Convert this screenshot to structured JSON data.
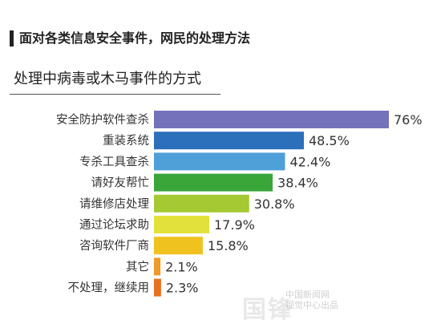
{
  "header": {
    "title": "面对各类信息安全事件，网民的处理方法",
    "subtitle": "处理中病毒或木马事件的方式"
  },
  "chart_data": {
    "type": "bar",
    "orientation": "horizontal",
    "categories": [
      "安全防护软件查杀",
      "重装系统",
      "专杀工具查杀",
      "请好友帮忙",
      "请维修店处理",
      "通过论坛求助",
      "咨询软件厂商",
      "其它",
      "不处理，继续用"
    ],
    "values": [
      76,
      48.5,
      42.4,
      38.4,
      30.8,
      17.9,
      15.8,
      2.1,
      2.3
    ],
    "value_labels": [
      "76%",
      "48.5%",
      "42.4%",
      "38.4%",
      "30.8%",
      "17.9%",
      "15.8%",
      "2.1%",
      "2.3%"
    ],
    "colors": [
      "#7472bb",
      "#2c6fba",
      "#4f9fd8",
      "#3aa63a",
      "#a4c932",
      "#e2e03a",
      "#f0c21f",
      "#f09a26",
      "#e8701e"
    ],
    "xlim": [
      0,
      76
    ],
    "unit": "%",
    "grid": false,
    "legend": "none"
  },
  "watermark": {
    "text_lines": [
      "中国新闻网",
      "视觉中心出品"
    ],
    "logo": "国锋"
  }
}
